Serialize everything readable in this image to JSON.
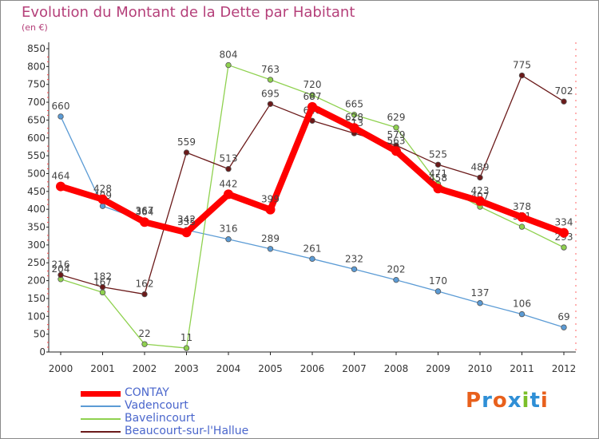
{
  "title": "Evolution du Montant de la Dette par Habitant",
  "unit": "(en €)",
  "logo": {
    "text": "Proxiti",
    "colors": [
      "#e8601c",
      "#2f8fd6",
      "#e8601c",
      "#2f8fd6",
      "#7bbf2a",
      "#2f8fd6",
      "#e8601c"
    ]
  },
  "chart_data": {
    "type": "line",
    "title": "Evolution du Montant de la Dette par Habitant",
    "subtitle": "(en €)",
    "x": [
      "2000",
      "2001",
      "2002",
      "2003",
      "2004",
      "2005",
      "2006",
      "2007",
      "2008",
      "2009",
      "2010",
      "2011",
      "2012"
    ],
    "ylim": [
      0,
      850
    ],
    "yticks": [
      0,
      50,
      100,
      150,
      200,
      250,
      300,
      350,
      400,
      450,
      500,
      550,
      600,
      650,
      700,
      750,
      800,
      850
    ],
    "grid": false,
    "legend_position": "bottom-left",
    "series": [
      {
        "name": "CONTAY",
        "color": "#ff0000",
        "values": [
          464,
          428,
          364,
          335,
          442,
          399,
          687,
          628,
          563,
          458,
          423,
          378,
          334
        ]
      },
      {
        "name": "Vadencourt",
        "color": "#5b9bd5",
        "values": [
          660,
          409,
          367,
          342,
          316,
          289,
          261,
          232,
          202,
          170,
          137,
          106,
          69
        ]
      },
      {
        "name": "Bavelincourt",
        "color": "#8fd14f",
        "values": [
          204,
          167,
          22,
          11,
          804,
          763,
          720,
          665,
          629,
          471,
          407,
          351,
          293
        ]
      },
      {
        "name": "Beaucourt-sur-l'Hallue",
        "color": "#6b1a1a",
        "values": [
          216,
          182,
          162,
          559,
          513,
          695,
          648,
          613,
          579,
          525,
          489,
          775,
          702
        ]
      }
    ]
  }
}
